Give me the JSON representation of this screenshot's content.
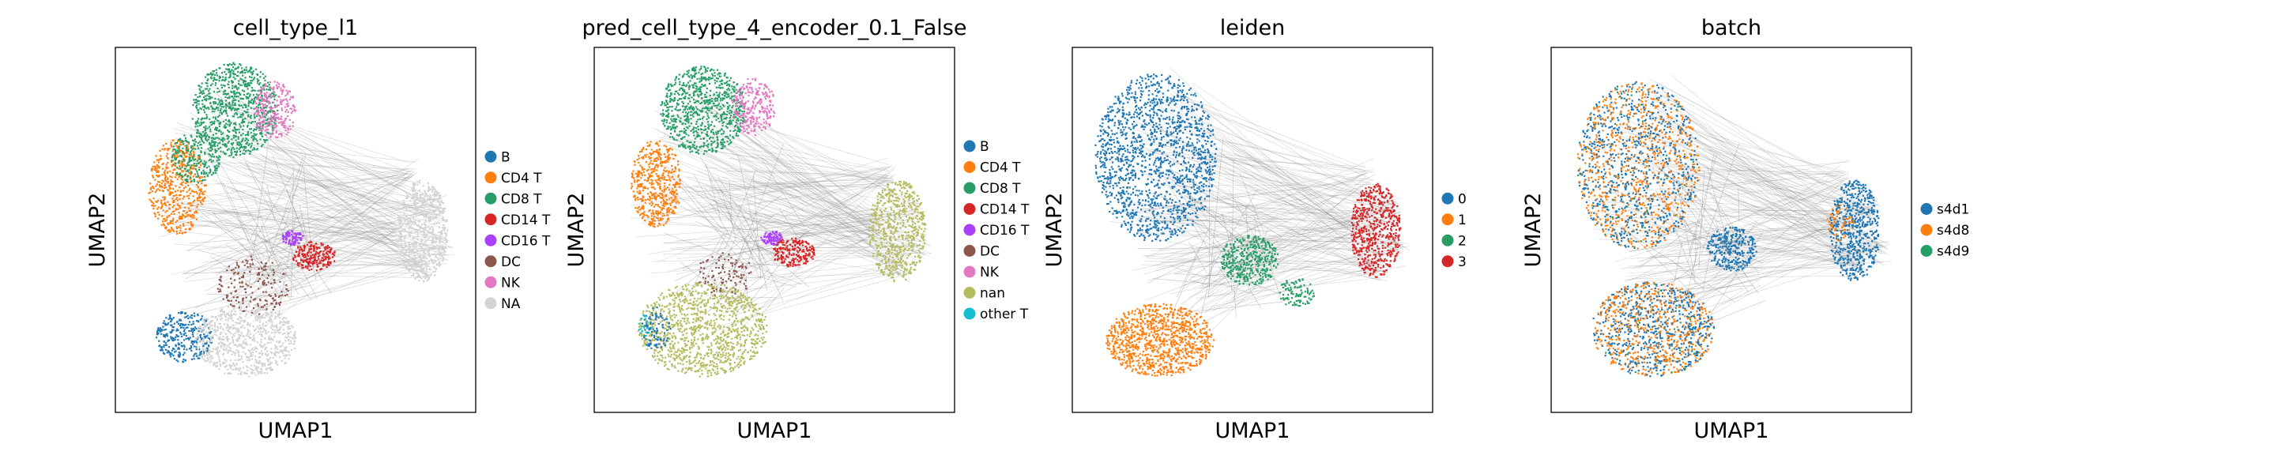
{
  "chart_data": [
    {
      "type": "scatter",
      "title": "cell_type_l1",
      "xlabel": "UMAP1",
      "ylabel": "UMAP2",
      "grid": false,
      "legend_position": "right",
      "series": [
        {
          "name": "B",
          "color": "#1f77b4"
        },
        {
          "name": "CD4 T",
          "color": "#ff7f0e"
        },
        {
          "name": "CD8 T",
          "color": "#279e68"
        },
        {
          "name": "CD14 T",
          "color": "#d62728"
        },
        {
          "name": "CD16 T",
          "color": "#aa40fc"
        },
        {
          "name": "DC",
          "color": "#8c564b"
        },
        {
          "name": "NK",
          "color": "#e377c2"
        },
        {
          "name": "NA",
          "color": "#d3d3d3"
        }
      ]
    },
    {
      "type": "scatter",
      "title": "pred_cell_type_4_encoder_0.1_False",
      "xlabel": "UMAP1",
      "ylabel": "UMAP2",
      "grid": false,
      "legend_position": "right",
      "series": [
        {
          "name": "B",
          "color": "#1f77b4"
        },
        {
          "name": "CD4 T",
          "color": "#ff7f0e"
        },
        {
          "name": "CD8 T",
          "color": "#279e68"
        },
        {
          "name": "CD14 T",
          "color": "#d62728"
        },
        {
          "name": "CD16 T",
          "color": "#aa40fc"
        },
        {
          "name": "DC",
          "color": "#8c564b"
        },
        {
          "name": "NK",
          "color": "#e377c2"
        },
        {
          "name": "nan",
          "color": "#b5bd61"
        },
        {
          "name": "other T",
          "color": "#17becf"
        }
      ]
    },
    {
      "type": "scatter",
      "title": "leiden",
      "xlabel": "UMAP1",
      "ylabel": "UMAP2",
      "grid": false,
      "legend_position": "right",
      "series": [
        {
          "name": "0",
          "color": "#1f77b4"
        },
        {
          "name": "1",
          "color": "#ff7f0e"
        },
        {
          "name": "2",
          "color": "#279e68"
        },
        {
          "name": "3",
          "color": "#d62728"
        }
      ]
    },
    {
      "type": "scatter",
      "title": "batch",
      "xlabel": "UMAP1",
      "ylabel": "UMAP2",
      "grid": false,
      "legend_position": "right",
      "series": [
        {
          "name": "s4d1",
          "color": "#1f77b4"
        },
        {
          "name": "s4d8",
          "color": "#ff7f0e"
        },
        {
          "name": "s4d9",
          "color": "#279e68"
        }
      ]
    }
  ]
}
